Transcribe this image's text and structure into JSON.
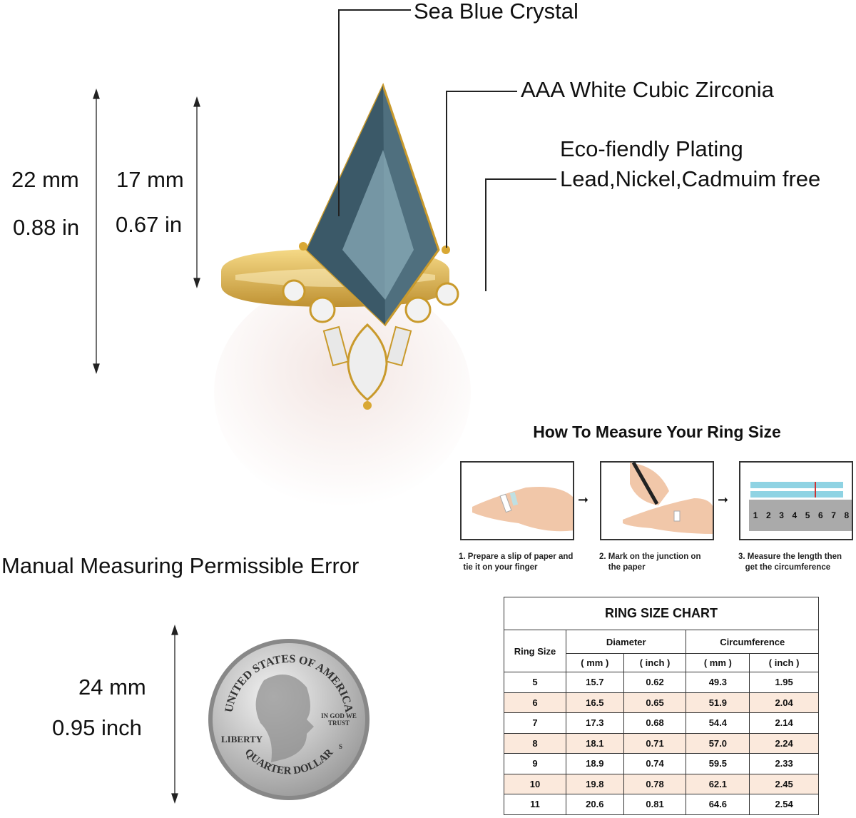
{
  "callouts": {
    "crystal": "Sea Blue Crystal",
    "zirconia": "AAA White Cubic Zirconia",
    "plating_1": "Eco-fiendly Plating",
    "plating_2": "Lead,Nickel,Cadmuim free"
  },
  "dimensions": {
    "total_mm": "22 mm",
    "total_in": "0.88 in",
    "stone_mm": "17 mm",
    "stone_in": "0.67 in",
    "coin_mm": "24 mm",
    "coin_in": "0.95 inch"
  },
  "error_note": "Manual Measuring Permissible Error",
  "coin": {
    "top": "UNITED STATES OF AMERICA",
    "liberty": "LIBERTY",
    "motto": "IN GOD WE TRUST",
    "mint": "S",
    "bottom": "QUARTER DOLLAR"
  },
  "measure": {
    "title": "How To Measure Your Ring Size",
    "steps": [
      {
        "line1": "1. Prepare a slip of paper and",
        "line2": "tie it on your finger"
      },
      {
        "line1": "2. Mark on the junction on",
        "line2": "the paper"
      },
      {
        "line1": "3. Measure the length then",
        "line2": "get the circumference"
      }
    ],
    "ruler_numbers": [
      "1",
      "2",
      "3",
      "4",
      "5",
      "6",
      "7",
      "8"
    ]
  },
  "ring_chart": {
    "title": "RING SIZE CHART",
    "col_size": "Ring Size",
    "col_diameter": "Diameter",
    "col_circ": "Circumference",
    "unit_mm": "( mm )",
    "unit_inch": "( inch )",
    "rows": [
      [
        "5",
        "15.7",
        "0.62",
        "49.3",
        "1.95"
      ],
      [
        "6",
        "16.5",
        "0.65",
        "51.9",
        "2.04"
      ],
      [
        "7",
        "17.3",
        "0.68",
        "54.4",
        "2.14"
      ],
      [
        "8",
        "18.1",
        "0.71",
        "57.0",
        "2.24"
      ],
      [
        "9",
        "18.9",
        "0.74",
        "59.5",
        "2.33"
      ],
      [
        "10",
        "19.8",
        "0.78",
        "62.1",
        "2.45"
      ],
      [
        "11",
        "20.6",
        "0.81",
        "64.6",
        "2.54"
      ]
    ]
  },
  "colors": {
    "gold": "#d9a834",
    "gem": "#4f6f7e",
    "row_alt": "#fbe9dc"
  }
}
